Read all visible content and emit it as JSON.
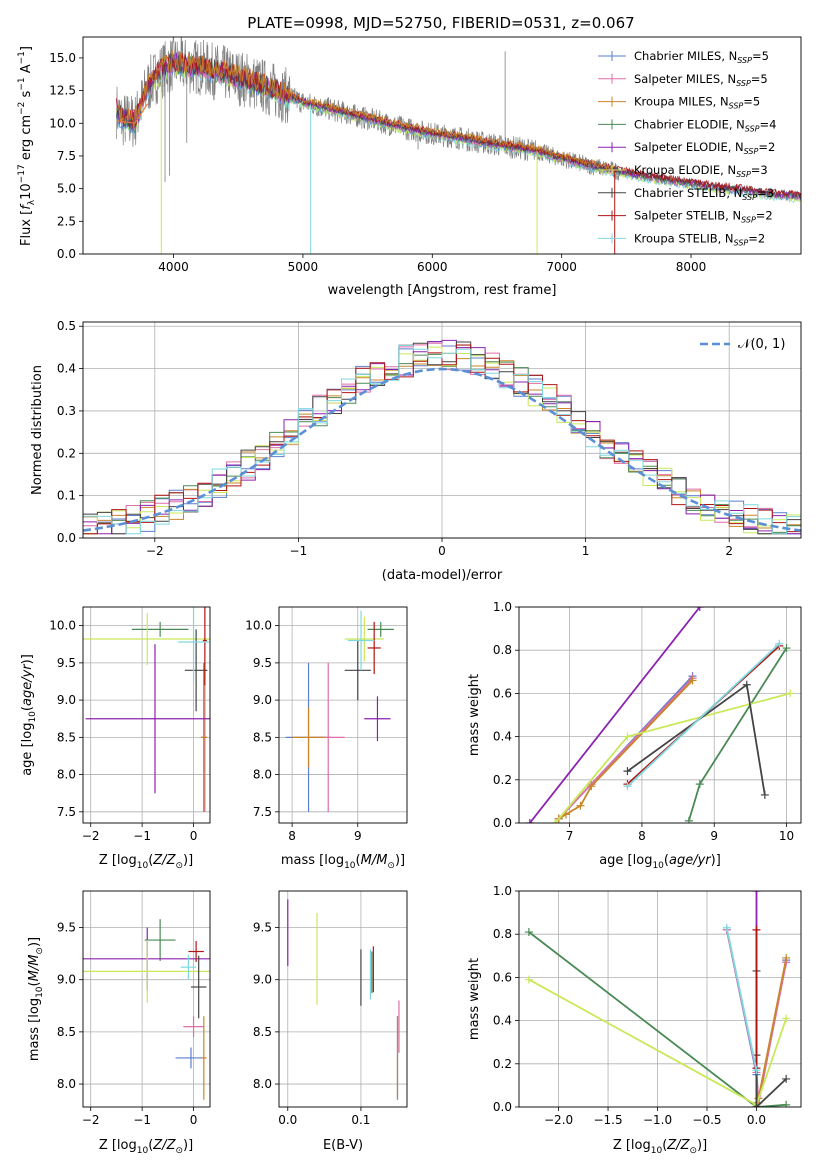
{
  "title": "PLATE=0998, MJD=52750, FIBERID=0531, z=0.067",
  "models": [
    {
      "name": "Chabrier MILES",
      "nssp": "5",
      "color": "#5b7fd1"
    },
    {
      "name": "Salpeter MILES",
      "nssp": "5",
      "color": "#e06ea8"
    },
    {
      "name": "Kroupa MILES",
      "nssp": "5",
      "color": "#c8862a"
    },
    {
      "name": "Chabrier ELODIE",
      "nssp": "4",
      "color": "#4a8a55"
    },
    {
      "name": "Salpeter ELODIE",
      "nssp": "2",
      "color": "#8b22b0"
    },
    {
      "name": "Kroupa ELODIE",
      "nssp": "3",
      "color": "#c9e85a"
    },
    {
      "name": "Chabrier STELIB",
      "nssp": "3",
      "color": "#444444"
    },
    {
      "name": "Salpeter STELIB",
      "nssp": "2",
      "color": "#b01515"
    },
    {
      "name": "Kroupa STELIB",
      "nssp": "2",
      "color": "#7fd8e0"
    }
  ],
  "colors": {
    "data_spectrum": "#808080",
    "normal_curve": "#5b8fd6",
    "model_overlay": "#ee7733",
    "grid": "#b0b0b0"
  },
  "chart_data": [
    {
      "id": "spectrum",
      "type": "line",
      "title": "PLATE=0998, MJD=52750, FIBERID=0531, z=0.067",
      "xlabel": "wavelength [Angstrom, rest frame]",
      "ylabel": "Flux [f_λ 10^-17 erg cm^-2 s^-1 A^-1]",
      "xlim": [
        3300,
        8850
      ],
      "ylim": [
        0,
        16.6
      ],
      "xticks": [
        4000,
        5000,
        6000,
        7000,
        8000
      ],
      "yticks": [
        0,
        2.5,
        5.0,
        7.5,
        10.0,
        12.5,
        15.0
      ],
      "grid": false,
      "legend": "upper right",
      "continuum": {
        "x": [
          3560,
          3600,
          3700,
          3800,
          3900,
          4000,
          4100,
          4200,
          4300,
          4400,
          4500,
          4600,
          4700,
          4800,
          4900,
          5000,
          5200,
          5400,
          5600,
          5800,
          6000,
          6200,
          6400,
          6600,
          6800,
          7000,
          7200,
          7400,
          7600,
          7800,
          8000,
          8200,
          8400,
          8600,
          8850
        ],
        "y": [
          11.0,
          10.3,
          10.1,
          12.8,
          14.0,
          14.6,
          14.4,
          14.3,
          14.0,
          13.8,
          13.5,
          13.2,
          12.8,
          12.4,
          12.0,
          11.6,
          11.1,
          10.6,
          10.1,
          9.6,
          9.2,
          8.9,
          8.5,
          8.2,
          7.9,
          7.3,
          6.8,
          6.4,
          6.0,
          5.7,
          5.4,
          5.1,
          4.9,
          4.6,
          4.4
        ]
      },
      "data_x_range": [
        3560,
        7450
      ],
      "model_x_range": [
        3560,
        8850
      ]
    },
    {
      "id": "residuals",
      "type": "line",
      "xlabel": "(data-model)/error",
      "ylabel": "Normed distribution",
      "xlim": [
        -2.5,
        2.5
      ],
      "ylim": [
        0,
        0.51
      ],
      "xticks": [
        -2,
        -1,
        0,
        1,
        2
      ],
      "yticks": [
        0.0,
        0.1,
        0.2,
        0.3,
        0.4,
        0.5
      ],
      "grid": true,
      "legend": "upper right",
      "legend_label": "𝒩(0, 1)",
      "bin_width": 0.1,
      "curve": "normal pdf, mean 0, sigma 1"
    },
    {
      "id": "age-vs-Z",
      "type": "scatter",
      "xlabel": "Z [log10(Z/Z⊙)]",
      "ylabel": "age [log10(age/yr)]",
      "xlim": [
        -2.15,
        0.32
      ],
      "ylim": [
        7.35,
        10.25
      ],
      "xticks": [
        -2,
        -1,
        0
      ],
      "yticks": [
        7.5,
        8.0,
        8.5,
        9.0,
        9.5,
        10.0
      ],
      "grid": true,
      "points": [
        {
          "m": 0,
          "x": 0.2,
          "xerr": 0.05,
          "y": 8.5,
          "yerr": 1.0
        },
        {
          "m": 1,
          "x": 0.22,
          "xerr": 0.05,
          "y": 8.5,
          "yerr": 1.0
        },
        {
          "m": 2,
          "x": 0.2,
          "xerr": 0.06,
          "y": 8.5,
          "yerr": 1.0
        },
        {
          "m": 3,
          "x": -0.65,
          "xerr": 0.55,
          "y": 9.95,
          "yerr": 0.1
        },
        {
          "m": 4,
          "x": -0.75,
          "xerr": 1.35,
          "y": 8.75,
          "yerr": 1.0
        },
        {
          "m": 5,
          "x": -0.9,
          "xerr": 1.25,
          "y": 9.82,
          "yerr": 0.35
        },
        {
          "m": 6,
          "x": 0.05,
          "xerr": 0.22,
          "y": 9.4,
          "yerr": 0.55
        },
        {
          "m": 7,
          "x": 0.22,
          "xerr": 0.04,
          "y": 9.8,
          "yerr": 0.6
        },
        {
          "m": 8,
          "x": 0.0,
          "xerr": 0.3,
          "y": 9.78,
          "yerr": 0.55
        }
      ]
    },
    {
      "id": "age-vs-mass",
      "type": "scatter",
      "xlabel": "mass [log10(M/M⊙)]",
      "ylabel": "",
      "xlim": [
        7.8,
        9.75
      ],
      "ylim": [
        7.35,
        10.25
      ],
      "xticks": [
        8,
        9
      ],
      "yticks": [
        7.5,
        8.0,
        8.5,
        9.0,
        9.5,
        10.0
      ],
      "grid": true,
      "points": [
        {
          "m": 0,
          "x": 8.25,
          "xerr": 0.35,
          "y": 8.5,
          "yerr": 1.0
        },
        {
          "m": 1,
          "x": 8.55,
          "xerr": 0.25,
          "y": 8.5,
          "yerr": 1.0
        },
        {
          "m": 2,
          "x": 8.25,
          "xerr": 0.25,
          "y": 8.5,
          "yerr": 0.4
        },
        {
          "m": 3,
          "x": 9.35,
          "xerr": 0.2,
          "y": 9.95,
          "yerr": 0.1
        },
        {
          "m": 4,
          "x": 9.3,
          "xerr": 0.2,
          "y": 8.75,
          "yerr": 0.3
        },
        {
          "m": 5,
          "x": 9.1,
          "xerr": 0.3,
          "y": 9.82,
          "yerr": 0.3
        },
        {
          "m": 6,
          "x": 9.0,
          "xerr": 0.2,
          "y": 9.4,
          "yerr": 0.4
        },
        {
          "m": 7,
          "x": 9.25,
          "xerr": 0.1,
          "y": 9.7,
          "yerr": 0.35
        },
        {
          "m": 8,
          "x": 9.05,
          "xerr": 0.2,
          "y": 9.8,
          "yerr": 0.4
        }
      ]
    },
    {
      "id": "weight-vs-age",
      "type": "line",
      "xlabel": "age [log10(age/yr)]",
      "ylabel": "mass weight",
      "xlim": [
        6.3,
        10.2
      ],
      "ylim": [
        0,
        1.0
      ],
      "xticks": [
        7,
        8,
        9,
        10
      ],
      "yticks": [
        0.0,
        0.2,
        0.4,
        0.6,
        0.8,
        1.0
      ],
      "grid": true,
      "series": [
        {
          "m": 0,
          "x": [
            6.85,
            7.3,
            8.7
          ],
          "y": [
            0.02,
            0.18,
            0.68
          ]
        },
        {
          "m": 1,
          "x": [
            6.85,
            7.3,
            8.7
          ],
          "y": [
            0.02,
            0.18,
            0.67
          ]
        },
        {
          "m": 2,
          "x": [
            6.85,
            6.95,
            7.15,
            7.3,
            8.7
          ],
          "y": [
            0.02,
            0.04,
            0.08,
            0.17,
            0.66
          ]
        },
        {
          "m": 3,
          "x": [
            8.65,
            8.8,
            10.0
          ],
          "y": [
            0.01,
            0.18,
            0.81
          ]
        },
        {
          "m": 4,
          "x": [
            6.45,
            8.8
          ],
          "y": [
            0.0,
            1.0
          ]
        },
        {
          "m": 5,
          "x": [
            6.8,
            7.8,
            10.05
          ],
          "y": [
            0.0,
            0.4,
            0.6
          ]
        },
        {
          "m": 6,
          "x": [
            7.8,
            9.45,
            9.7
          ],
          "y": [
            0.24,
            0.64,
            0.13
          ]
        },
        {
          "m": 7,
          "x": [
            7.8,
            9.9
          ],
          "y": [
            0.18,
            0.82
          ]
        },
        {
          "m": 8,
          "x": [
            7.8,
            9.9
          ],
          "y": [
            0.17,
            0.83
          ]
        }
      ]
    },
    {
      "id": "mass-vs-Z",
      "type": "scatter",
      "xlabel": "Z [log10(Z/Z⊙)]",
      "ylabel": "mass [log10(M/M⊙)]",
      "xlim": [
        -2.15,
        0.32
      ],
      "ylim": [
        7.78,
        9.85
      ],
      "xticks": [
        -2,
        -1,
        0
      ],
      "yticks": [
        8.0,
        8.5,
        9.0,
        9.5
      ],
      "grid": true,
      "points": [
        {
          "m": 0,
          "x": -0.05,
          "xerr": 0.3,
          "y": 8.25,
          "yerr": 0.1
        },
        {
          "m": 1,
          "x": 0.0,
          "xerr": 0.2,
          "y": 8.55,
          "yerr": 0.1
        },
        {
          "m": 2,
          "x": 0.2,
          "xerr": 0.05,
          "y": 8.25,
          "yerr": 0.4
        },
        {
          "m": 3,
          "x": -0.65,
          "xerr": 0.3,
          "y": 9.38,
          "yerr": 0.2
        },
        {
          "m": 4,
          "x": -0.9,
          "xerr": 1.3,
          "y": 9.2,
          "yerr": 0.3
        },
        {
          "m": 5,
          "x": -0.9,
          "xerr": 1.25,
          "y": 9.08,
          "yerr": 0.3
        },
        {
          "m": 6,
          "x": 0.1,
          "xerr": 0.15,
          "y": 8.93,
          "yerr": 0.3
        },
        {
          "m": 7,
          "x": 0.05,
          "xerr": 0.15,
          "y": 9.27,
          "yerr": 0.1
        },
        {
          "m": 8,
          "x": -0.1,
          "xerr": 0.15,
          "y": 9.12,
          "yerr": 0.12
        }
      ]
    },
    {
      "id": "mass-vs-ebv",
      "type": "scatter",
      "xlabel": "E(B-V)",
      "ylabel": "",
      "xlim": [
        -0.012,
        0.163
      ],
      "ylim": [
        7.78,
        9.85
      ],
      "xticks": [
        0.0,
        0.1
      ],
      "yticks": [
        8.0,
        8.5,
        9.0,
        9.5
      ],
      "grid": true,
      "points": [
        {
          "m": 0,
          "x": 0.15,
          "xerr": 0.0,
          "y": 8.25,
          "yerr": 0.4
        },
        {
          "m": 1,
          "x": 0.152,
          "xerr": 0.0,
          "y": 8.55,
          "yerr": 0.25
        },
        {
          "m": 2,
          "x": 0.15,
          "xerr": 0.0,
          "y": 8.25,
          "yerr": 0.4
        },
        {
          "m": 3,
          "x": 0.115,
          "xerr": 0.0,
          "y": 9.07,
          "yerr": 0.2
        },
        {
          "m": 4,
          "x": 0.0,
          "xerr": 0.0,
          "y": 9.45,
          "yerr": 0.32
        },
        {
          "m": 5,
          "x": 0.04,
          "xerr": 0.0,
          "y": 9.2,
          "yerr": 0.44
        },
        {
          "m": 6,
          "x": 0.1,
          "xerr": 0.0,
          "y": 9.02,
          "yerr": 0.27
        },
        {
          "m": 7,
          "x": 0.117,
          "xerr": 0.0,
          "y": 9.1,
          "yerr": 0.22
        },
        {
          "m": 8,
          "x": 0.113,
          "xerr": 0.0,
          "y": 9.05,
          "yerr": 0.24
        }
      ]
    },
    {
      "id": "weight-vs-Z",
      "type": "line",
      "xlabel": "Z [log10(Z/Z⊙)]",
      "ylabel": "mass weight",
      "xlim": [
        -2.4,
        0.45
      ],
      "ylim": [
        0,
        1.0
      ],
      "xticks": [
        -2.0,
        -1.5,
        -1.0,
        -0.5,
        0.0
      ],
      "yticks": [
        0.0,
        0.2,
        0.4,
        0.6,
        0.8,
        1.0
      ],
      "grid": true,
      "series": [
        {
          "m": 0,
          "x": [
            -0.3,
            0.0,
            0.02,
            0.3
          ],
          "y": [
            0.82,
            0.15,
            0.02,
            0.68
          ]
        },
        {
          "m": 1,
          "x": [
            -0.3,
            0.0,
            0.02,
            0.3
          ],
          "y": [
            0.82,
            0.16,
            0.02,
            0.67
          ]
        },
        {
          "m": 2,
          "x": [
            0.0,
            0.02,
            0.3
          ],
          "y": [
            0.02,
            0.04,
            0.69
          ]
        },
        {
          "m": 3,
          "x": [
            -2.3,
            0.0,
            0.3
          ],
          "y": [
            0.81,
            0.0,
            0.01
          ]
        },
        {
          "m": 4,
          "x": [
            0.0,
            0.0
          ],
          "y": [
            0.0,
            1.0
          ]
        },
        {
          "m": 5,
          "x": [
            -2.3,
            0.0,
            0.3
          ],
          "y": [
            0.59,
            0.01,
            0.41
          ]
        },
        {
          "m": 6,
          "x": [
            0.0,
            0.0,
            0.0,
            0.3
          ],
          "y": [
            0.63,
            0.24,
            0.0,
            0.13
          ]
        },
        {
          "m": 7,
          "x": [
            0.0,
            0.0
          ],
          "y": [
            0.18,
            0.82
          ]
        },
        {
          "m": 8,
          "x": [
            -0.3,
            0.0
          ],
          "y": [
            0.83,
            0.17
          ]
        }
      ]
    }
  ]
}
